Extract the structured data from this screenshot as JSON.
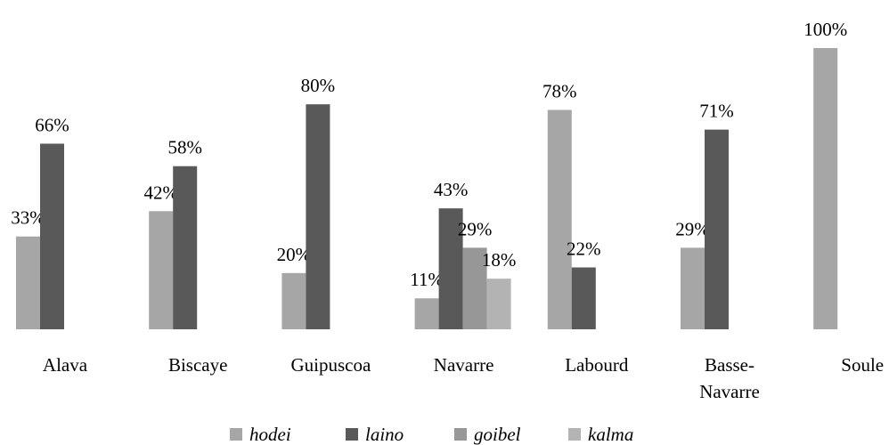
{
  "chart_data": {
    "type": "bar",
    "categories": [
      "Alava",
      "Biscaye",
      "Guipuscoa",
      "Navarre",
      "Labourd",
      "Basse-Navarre",
      "Soule"
    ],
    "series": [
      {
        "name": "hodei",
        "color": "#a6a6a6",
        "values": [
          33,
          42,
          20,
          11,
          78,
          29,
          100
        ],
        "value_labels": [
          "33%",
          "42%",
          "20%",
          "11%",
          "78%",
          "29%",
          "100%"
        ]
      },
      {
        "name": "laino",
        "color": "#595959",
        "values": [
          66,
          58,
          80,
          43,
          22,
          71,
          null
        ],
        "value_labels": [
          "66%",
          "58%",
          "80%",
          "43%",
          "22%",
          "71%",
          null
        ]
      },
      {
        "name": "goibel",
        "color": "#979797",
        "values": [
          null,
          null,
          null,
          29,
          null,
          null,
          null
        ],
        "value_labels": [
          null,
          null,
          null,
          "29%",
          null,
          null,
          null
        ]
      },
      {
        "name": "kalma",
        "color": "#b3b3b3",
        "values": [
          null,
          null,
          null,
          18,
          null,
          null,
          null
        ],
        "value_labels": [
          null,
          null,
          null,
          "18%",
          null,
          null,
          null
        ]
      }
    ],
    "legend": "bottom"
  }
}
